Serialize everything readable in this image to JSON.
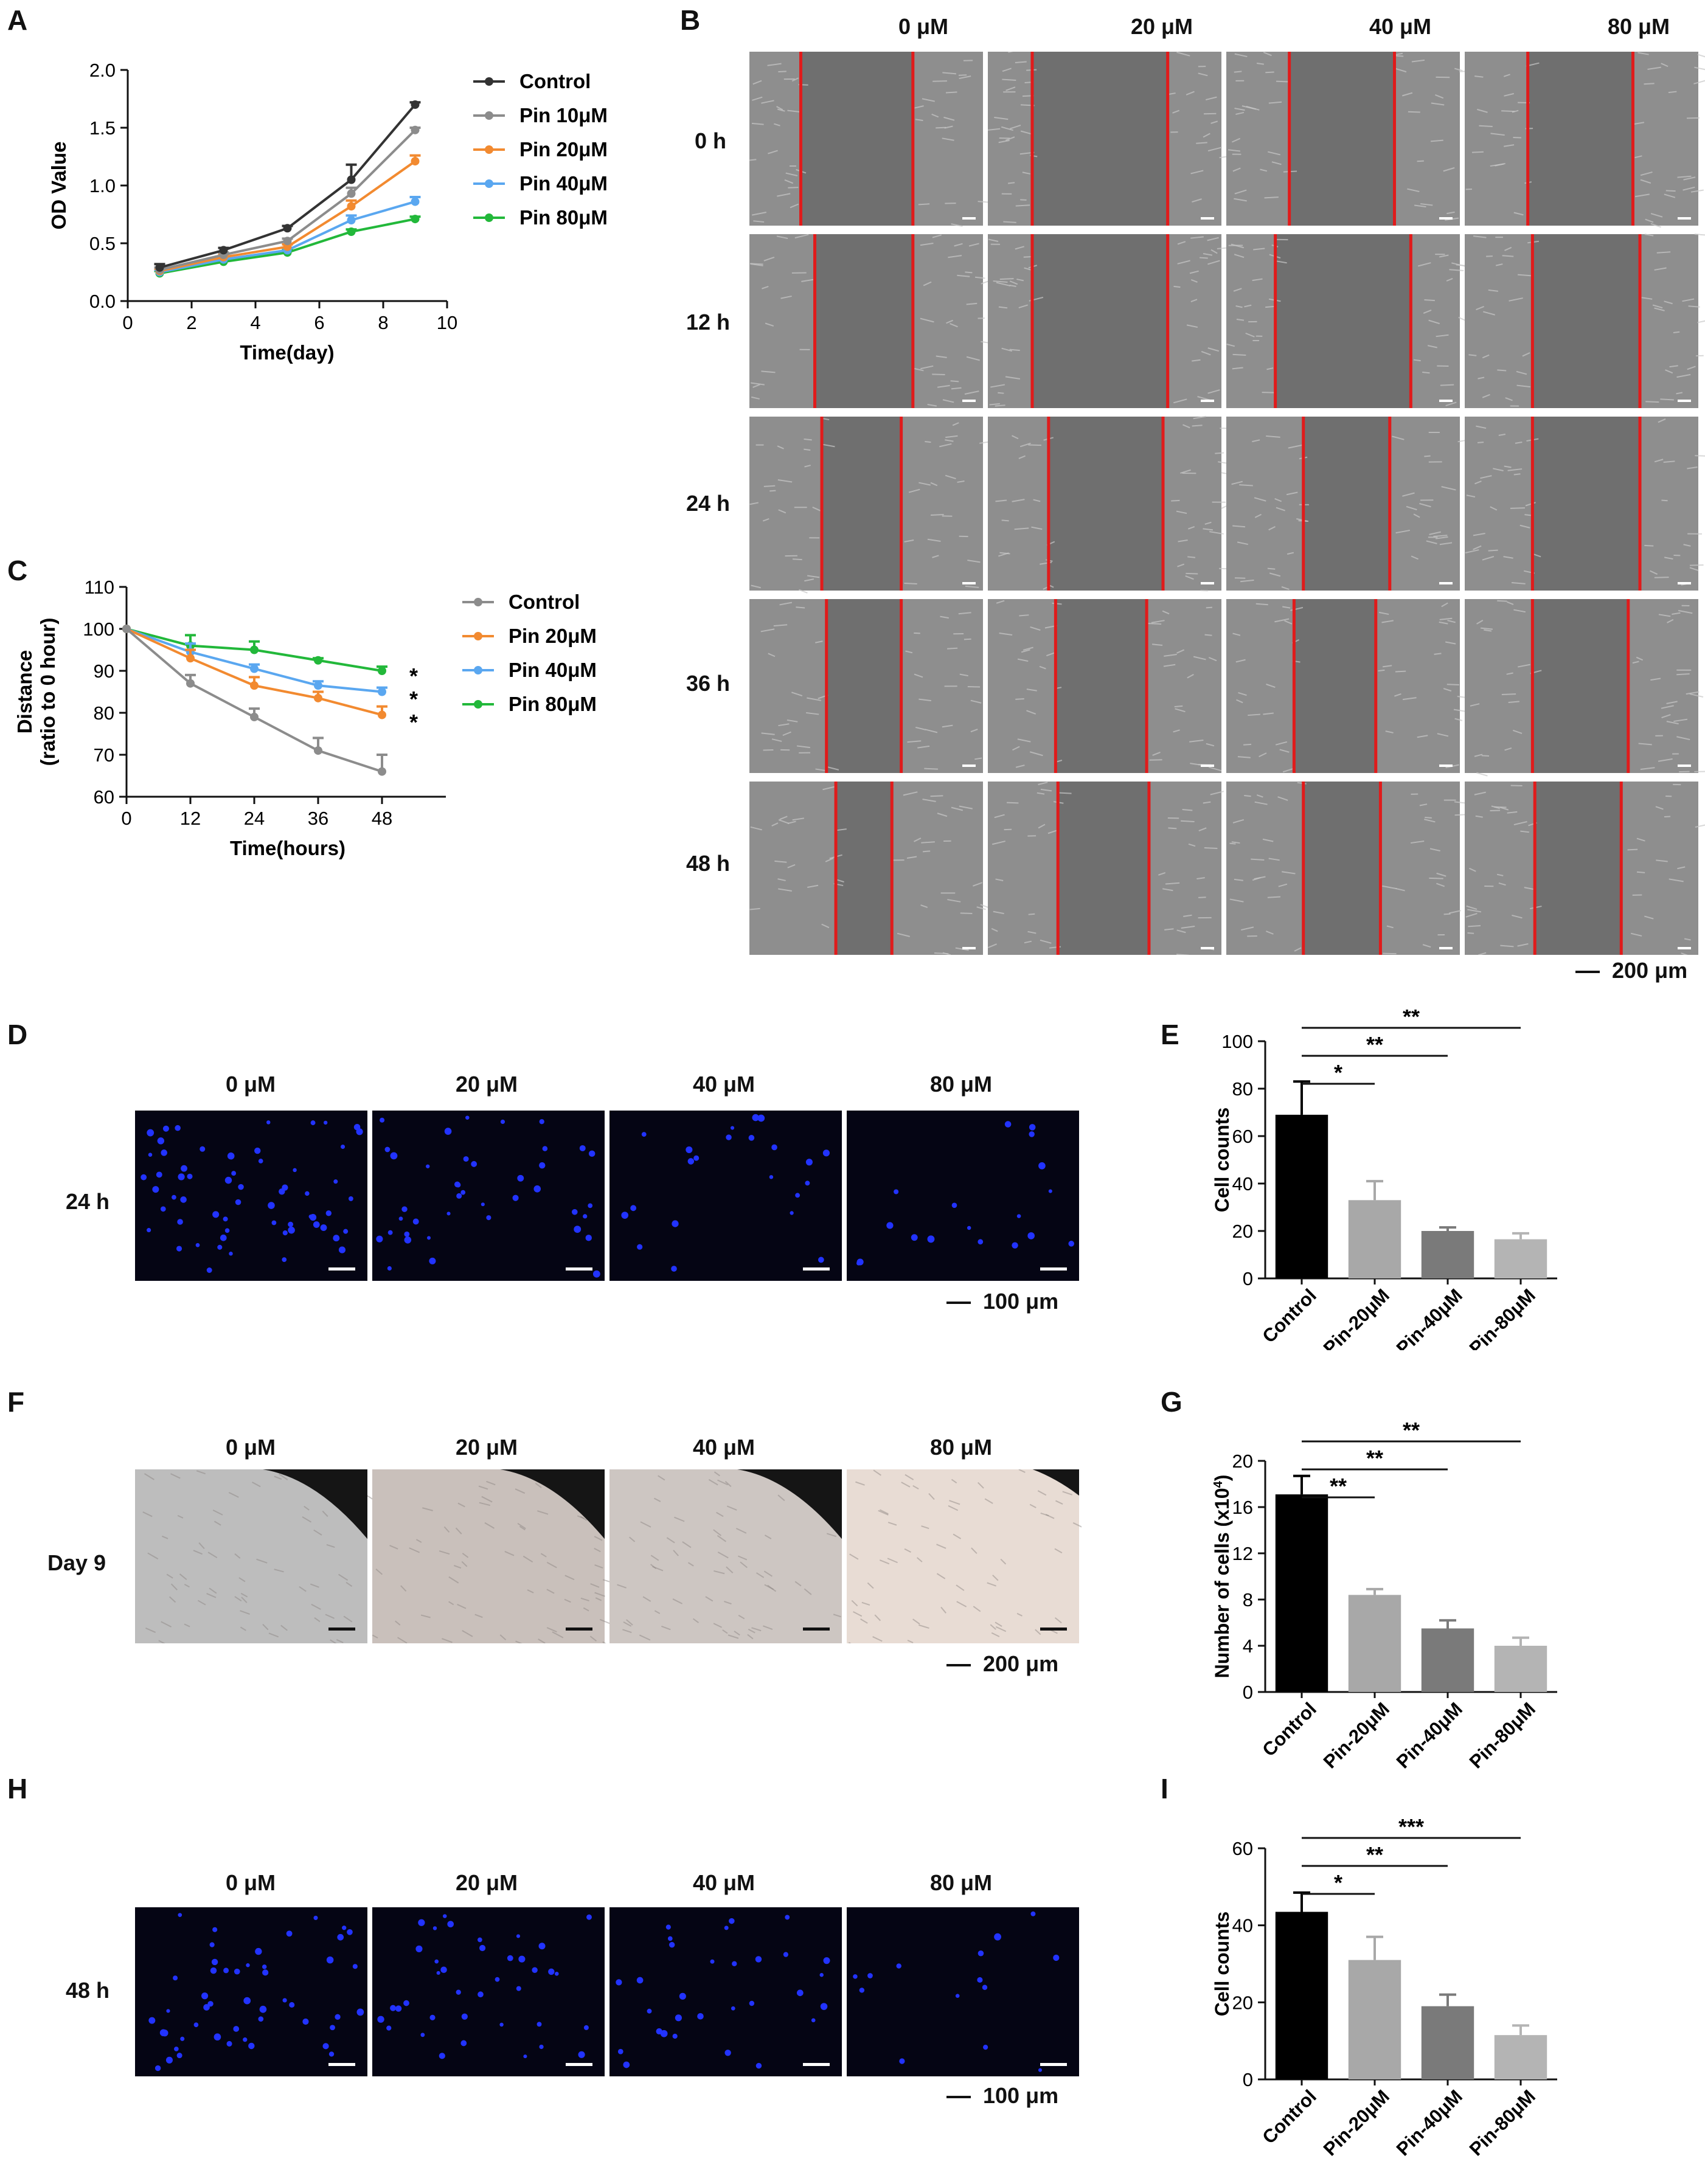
{
  "colors": {
    "control_black": "#333333",
    "pin10_gray": "#8c8c8c",
    "pin20_orange": "#f28a30",
    "pin40_blue": "#5aa7f0",
    "pin80_green": "#22b83a",
    "wound_line_red": "#e01b1b",
    "nuclei_blue": "#2233ff",
    "bar_control": "#000000",
    "bar_pin20": "#a8a8a8",
    "bar_pin40": "#7a7a7a",
    "bar_pin80": "#b4b4b4"
  },
  "panels": {
    "A": {
      "label": "A"
    },
    "B": {
      "label": "B",
      "columns": [
        "0 μM",
        "20 μM",
        "40 μM",
        "80 μM"
      ],
      "rows": [
        "0 h",
        "12 h",
        "24 h",
        "36 h",
        "48 h"
      ],
      "scale": "200 μm"
    },
    "C": {
      "label": "C"
    },
    "D": {
      "label": "D",
      "columns": [
        "0 μM",
        "20 μM",
        "40 μM",
        "80 μM"
      ],
      "row": "24 h",
      "scale": "100 μm"
    },
    "E": {
      "label": "E"
    },
    "F": {
      "label": "F",
      "columns": [
        "0 μM",
        "20 μM",
        "40 μM",
        "80 μM"
      ],
      "row": "Day 9",
      "scale": "200 μm"
    },
    "G": {
      "label": "G"
    },
    "H": {
      "label": "H",
      "columns": [
        "0 μM",
        "20 μM",
        "40 μM",
        "80 μM"
      ],
      "row": "48 h",
      "scale": "100 μm"
    },
    "I": {
      "label": "I"
    }
  },
  "chart_data": [
    {
      "id": "A",
      "type": "line",
      "xlabel": "Time(day)",
      "ylabel": "OD Value",
      "xlim": [
        0,
        10
      ],
      "ylim": [
        0,
        2.0
      ],
      "xticks": [
        "0",
        "2",
        "4",
        "6",
        "8",
        "10"
      ],
      "yticks": [
        "0.0",
        "0.5",
        "1.0",
        "1.5",
        "2.0"
      ],
      "x": [
        1,
        3,
        5,
        7,
        9
      ],
      "legend_position": "right",
      "series": [
        {
          "name": "Control",
          "color": "#333333",
          "values": [
            0.29,
            0.44,
            0.63,
            1.05,
            1.7
          ],
          "err": [
            0.03,
            0.02,
            0.02,
            0.13,
            0.02
          ]
        },
        {
          "name": "Pin 10μM",
          "color": "#8c8c8c",
          "values": [
            0.27,
            0.4,
            0.52,
            0.93,
            1.48
          ],
          "err": [
            0.02,
            0.02,
            0.02,
            0.05,
            0.02
          ]
        },
        {
          "name": "Pin 20μM",
          "color": "#f28a30",
          "values": [
            0.26,
            0.38,
            0.47,
            0.82,
            1.21
          ],
          "err": [
            0.02,
            0.02,
            0.02,
            0.05,
            0.05
          ]
        },
        {
          "name": "Pin 40μM",
          "color": "#5aa7f0",
          "values": [
            0.25,
            0.36,
            0.44,
            0.7,
            0.86
          ],
          "err": [
            0.02,
            0.02,
            0.02,
            0.04,
            0.04
          ]
        },
        {
          "name": "Pin 80μM",
          "color": "#22b83a",
          "values": [
            0.24,
            0.34,
            0.42,
            0.6,
            0.71
          ],
          "err": [
            0.02,
            0.02,
            0.02,
            0.02,
            0.02
          ]
        }
      ]
    },
    {
      "id": "C",
      "type": "line",
      "xlabel": "Time(hours)",
      "ylabel": "Distance",
      "ylabel2": "(ratio to 0 hour)",
      "xlim": [
        0,
        60
      ],
      "ylim": [
        60,
        110
      ],
      "xticks": [
        "0",
        "12",
        "24",
        "36",
        "48"
      ],
      "yticks": [
        "60",
        "70",
        "80",
        "90",
        "100",
        "110"
      ],
      "x": [
        0,
        12,
        24,
        36,
        48
      ],
      "legend_position": "right",
      "significance": [
        "*",
        "*",
        "*"
      ],
      "series": [
        {
          "name": "Control",
          "color": "#8c8c8c",
          "line_color": "#8c8c8c",
          "values": [
            100,
            87,
            79,
            71,
            66
          ],
          "err": [
            0,
            2,
            2,
            3,
            4
          ]
        },
        {
          "name": "Pin 20μM",
          "color": "#f28a30",
          "values": [
            100,
            93,
            86.5,
            83.5,
            79.5
          ],
          "err": [
            0,
            2,
            2,
            1.5,
            2
          ]
        },
        {
          "name": "Pin 40μM",
          "color": "#5aa7f0",
          "values": [
            100,
            94.5,
            90.5,
            86.5,
            85
          ],
          "err": [
            0,
            2,
            1,
            1,
            1
          ]
        },
        {
          "name": "Pin 80μM",
          "color": "#22b83a",
          "values": [
            100,
            96,
            95,
            92.5,
            90
          ],
          "err": [
            0,
            2.5,
            2,
            0.5,
            1
          ]
        }
      ]
    },
    {
      "id": "E",
      "type": "bar",
      "ylabel": "Cell counts",
      "ylim": [
        0,
        100
      ],
      "yticks": [
        "0",
        "20",
        "40",
        "60",
        "80",
        "100"
      ],
      "categories": [
        "Control",
        "Pin-20μM",
        "Pin-40μM",
        "Pin-80μM"
      ],
      "values": [
        69,
        33,
        20,
        16.5
      ],
      "err": [
        14,
        8,
        1.5,
        2.5
      ],
      "significance": [
        {
          "to": "Pin-20μM",
          "label": "*"
        },
        {
          "to": "Pin-40μM",
          "label": "**"
        },
        {
          "to": "Pin-80μM",
          "label": "**"
        }
      ]
    },
    {
      "id": "G",
      "type": "bar",
      "ylabel": "Number of cells (x10",
      "ylabel_sup": "4",
      "ylabel_end": ")",
      "ylim": [
        0,
        20
      ],
      "yticks": [
        "0",
        "4",
        "8",
        "12",
        "16",
        "20"
      ],
      "categories": [
        "Control",
        "Pin-20μM",
        "Pin-40μM",
        "Pin-80μM"
      ],
      "values": [
        17.1,
        8.4,
        5.5,
        4.0
      ],
      "err": [
        1.6,
        0.5,
        0.7,
        0.7
      ],
      "significance": [
        {
          "to": "Pin-20μM",
          "label": "**"
        },
        {
          "to": "Pin-40μM",
          "label": "**"
        },
        {
          "to": "Pin-80μM",
          "label": "**"
        }
      ]
    },
    {
      "id": "I",
      "type": "bar",
      "ylabel": "Cell counts",
      "ylim": [
        0,
        60
      ],
      "yticks": [
        "0",
        "20",
        "40",
        "60"
      ],
      "categories": [
        "Control",
        "Pin-20μM",
        "Pin-40μM",
        "Pin-80μM"
      ],
      "values": [
        43.5,
        31,
        19,
        11.5
      ],
      "err": [
        5,
        6,
        3,
        2.5
      ],
      "significance": [
        {
          "to": "Pin-20μM",
          "label": "*"
        },
        {
          "to": "Pin-40μM",
          "label": "**"
        },
        {
          "to": "Pin-80μM",
          "label": "***"
        }
      ]
    }
  ]
}
